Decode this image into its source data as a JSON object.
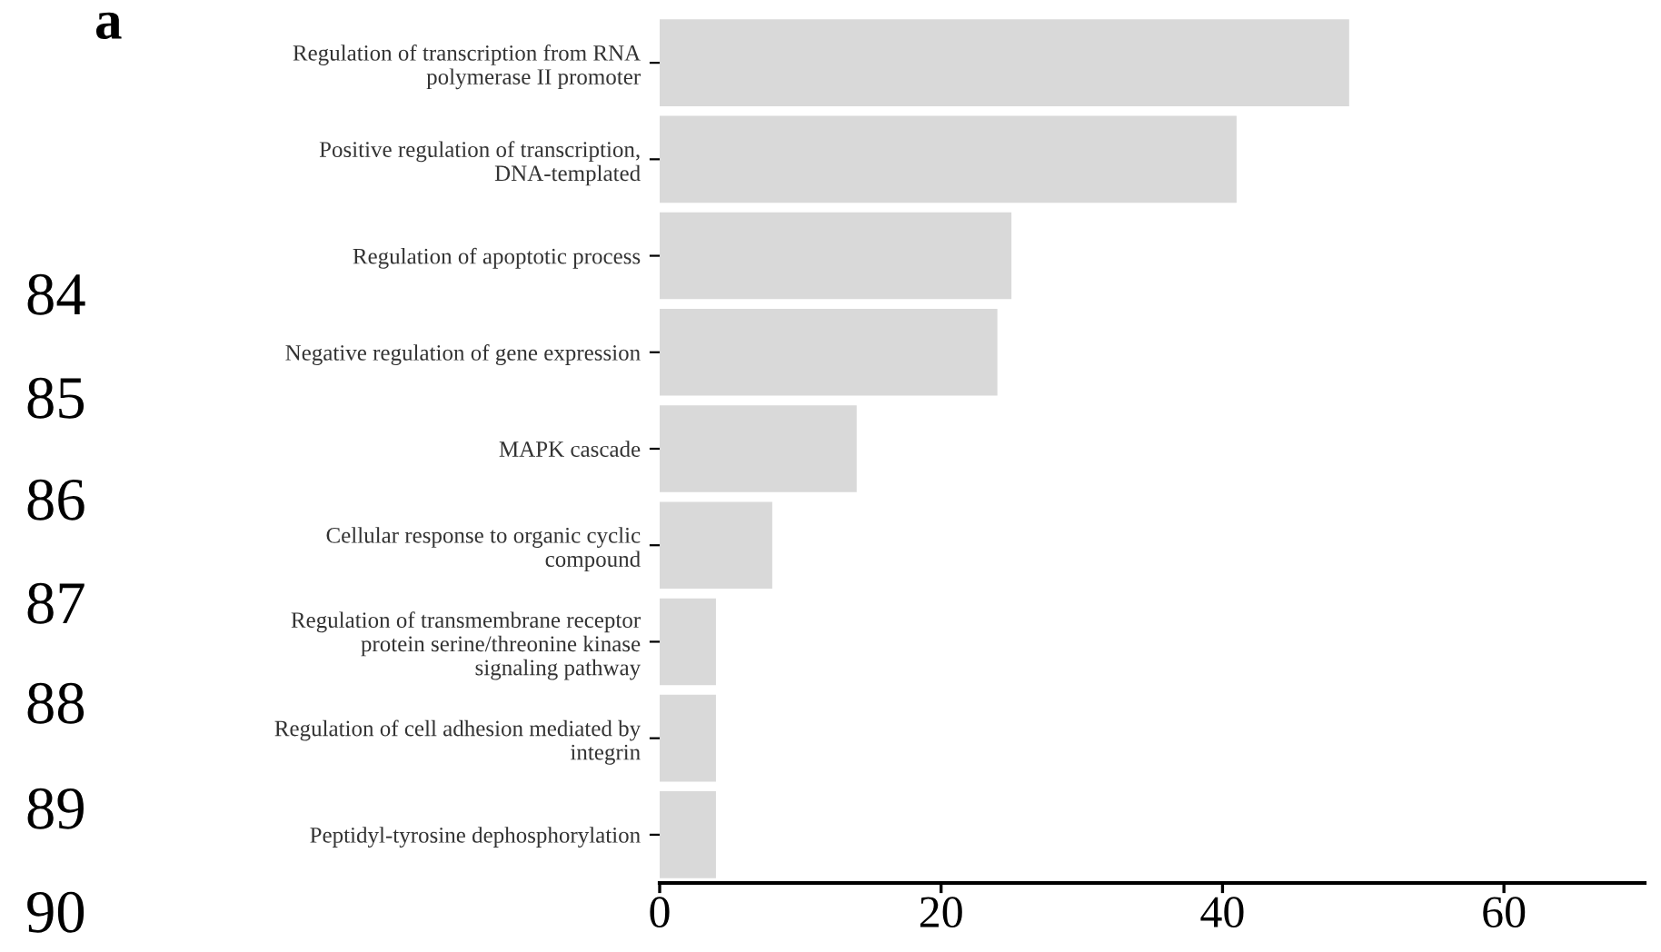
{
  "chart_data": {
    "type": "bar",
    "orientation": "horizontal",
    "title": "a",
    "categories": [
      "Regulation of transcription from RNA\npolymerase II promoter",
      "Positive regulation of transcription,\nDNA-templated",
      "Regulation of apoptotic process",
      "Negative regulation of gene expression",
      "MAPK cascade",
      "Cellular response to organic cyclic\ncompound",
      "Regulation of transmembrane receptor\nprotein serine/threonine kinase\nsignaling pathway",
      "Regulation of cell adhesion mediated by\nintegrin",
      "Peptidyl-tyrosine dephosphorylation"
    ],
    "values": [
      49,
      41,
      25,
      24,
      14,
      8,
      4,
      4,
      4
    ],
    "color": "#d9d9d9",
    "xlim": [
      0,
      70
    ],
    "xticks": [
      0,
      20,
      40,
      60
    ],
    "grid": false,
    "legend": false,
    "annotations": [
      "84",
      "85",
      "86",
      "87",
      "88",
      "89",
      "90"
    ]
  }
}
